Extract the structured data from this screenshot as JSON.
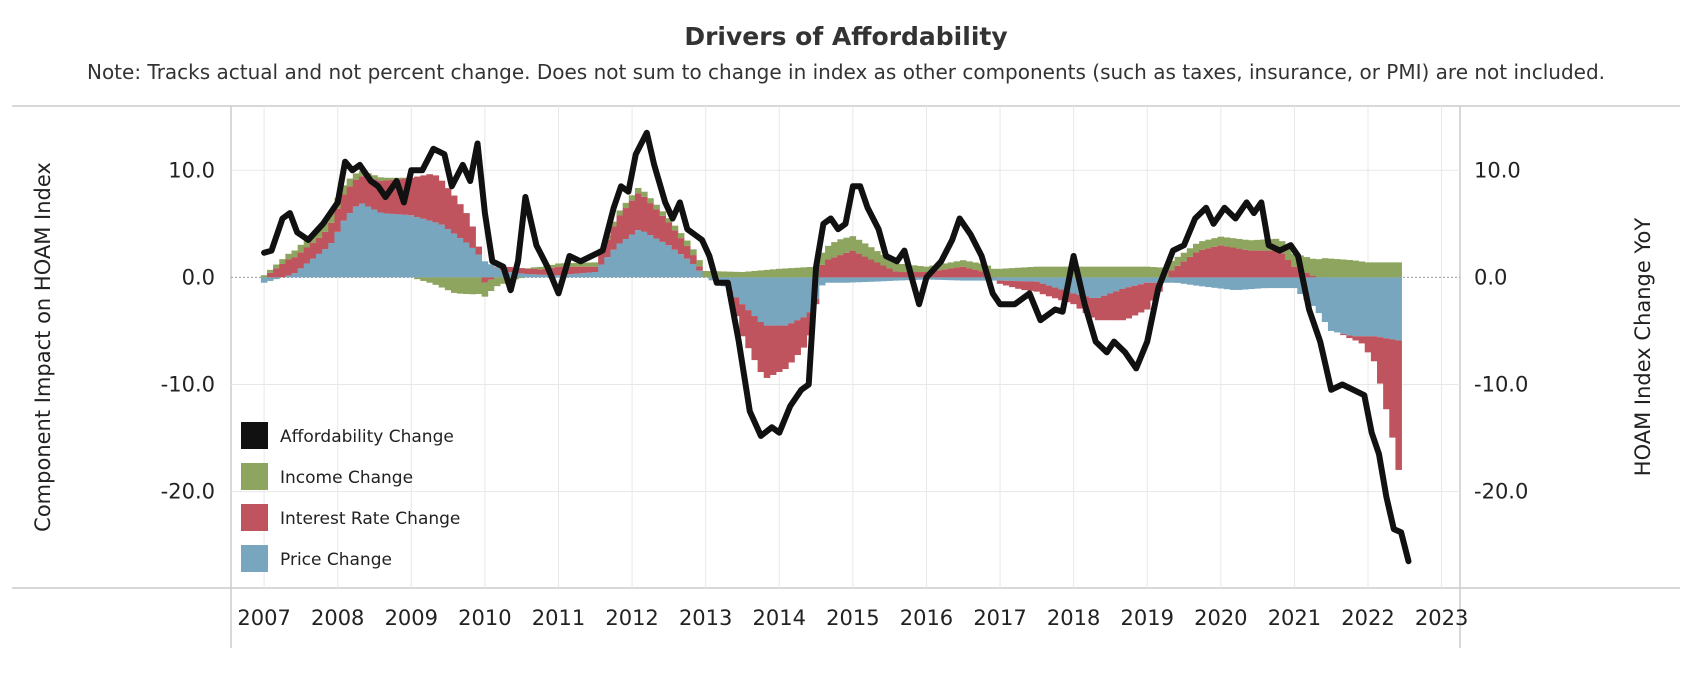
{
  "chart_data": {
    "type": "bar",
    "title": "Drivers of Affordability",
    "subtitle": "Note: Tracks actual and not percent change. Does not sum to change in index as other components (such as taxes, insurance, or PMI) are not included.",
    "y_left_label": "Component Impact on HOAM Index",
    "y_right_label": "HOAM Index Change YoY",
    "ylim": [
      -27,
      15
    ],
    "yticks": [
      10,
      0,
      -10,
      -20
    ],
    "ytick_labels": [
      "10.0",
      "0.0",
      "-10.0",
      "-20.0"
    ],
    "xlim": [
      2007.0,
      2023.3
    ],
    "xticks": [
      2007,
      2008,
      2009,
      2010,
      2011,
      2012,
      2013,
      2014,
      2015,
      2016,
      2017,
      2018,
      2019,
      2020,
      2021,
      2022,
      2023
    ],
    "xtick_labels": [
      "2007",
      "2008",
      "2009",
      "2010",
      "2011",
      "2012",
      "2013",
      "2014",
      "2015",
      "2016",
      "2017",
      "2018",
      "2019",
      "2020",
      "2021",
      "2022",
      "2023"
    ],
    "grid": true,
    "legend_position": "bottom-left",
    "colors": {
      "affordability": "#111111",
      "income": "#8da55e",
      "interest": "#c0545e",
      "price": "#79a6bf",
      "grid": "#e8e8e8",
      "zero_line": "#aaaaaa",
      "frame": "#cccccc"
    },
    "legend": [
      {
        "key": "affordability",
        "label": "Affordability Change"
      },
      {
        "key": "income",
        "label": "Income Change"
      },
      {
        "key": "interest",
        "label": "Interest Rate Change"
      },
      {
        "key": "price",
        "label": "Price Change"
      }
    ],
    "monthly_start": "2007-01",
    "monthly_end": "2022-06",
    "price_keypoints": [
      [
        2007.0,
        -0.5
      ],
      [
        2007.4,
        0.3
      ],
      [
        2007.9,
        3.0
      ],
      [
        2008.1,
        5.5
      ],
      [
        2008.3,
        7.0
      ],
      [
        2008.6,
        6.0
      ],
      [
        2009.0,
        5.8
      ],
      [
        2009.4,
        5.0
      ],
      [
        2009.8,
        3.0
      ],
      [
        2010.0,
        1.5
      ],
      [
        2010.3,
        0.5
      ],
      [
        2010.6,
        0.3
      ],
      [
        2011.0,
        0.2
      ],
      [
        2011.5,
        0.5
      ],
      [
        2011.8,
        3.0
      ],
      [
        2012.1,
        4.5
      ],
      [
        2012.5,
        3.0
      ],
      [
        2012.8,
        1.5
      ],
      [
        2013.0,
        0.0
      ],
      [
        2013.3,
        -1.0
      ],
      [
        2013.5,
        -2.5
      ],
      [
        2013.8,
        -4.5
      ],
      [
        2014.1,
        -4.5
      ],
      [
        2014.4,
        -3.5
      ],
      [
        2014.6,
        -0.5
      ],
      [
        2014.9,
        -0.5
      ],
      [
        2015.3,
        -0.4
      ],
      [
        2015.6,
        -0.3
      ],
      [
        2016.0,
        -0.2
      ],
      [
        2016.5,
        -0.3
      ],
      [
        2017.0,
        -0.3
      ],
      [
        2017.5,
        -0.4
      ],
      [
        2018.0,
        -1.5
      ],
      [
        2018.3,
        -2.0
      ],
      [
        2018.7,
        -1.0
      ],
      [
        2019.0,
        -0.5
      ],
      [
        2019.4,
        -0.5
      ],
      [
        2019.7,
        -0.8
      ],
      [
        2020.2,
        -1.2
      ],
      [
        2020.6,
        -1.0
      ],
      [
        2021.0,
        -1.0
      ],
      [
        2021.3,
        -3.0
      ],
      [
        2021.5,
        -5.0
      ],
      [
        2021.8,
        -5.5
      ],
      [
        2022.1,
        -5.5
      ],
      [
        2022.5,
        -6.0
      ]
    ],
    "interest_keypoints": [
      [
        2007.0,
        0.0
      ],
      [
        2007.3,
        1.5
      ],
      [
        2007.8,
        1.5
      ],
      [
        2008.1,
        2.5
      ],
      [
        2008.3,
        2.5
      ],
      [
        2008.6,
        3.0
      ],
      [
        2009.0,
        3.5
      ],
      [
        2009.3,
        4.5
      ],
      [
        2009.6,
        3.5
      ],
      [
        2009.8,
        2.5
      ],
      [
        2010.0,
        -0.5
      ],
      [
        2010.3,
        0.5
      ],
      [
        2010.5,
        0.5
      ],
      [
        2010.8,
        0.5
      ],
      [
        2011.0,
        0.8
      ],
      [
        2011.5,
        0.5
      ],
      [
        2011.8,
        2.5
      ],
      [
        2012.1,
        3.5
      ],
      [
        2012.4,
        2.5
      ],
      [
        2012.8,
        1.0
      ],
      [
        2013.0,
        0.0
      ],
      [
        2013.3,
        0.0
      ],
      [
        2013.5,
        -3.0
      ],
      [
        2013.8,
        -5.0
      ],
      [
        2014.1,
        -4.0
      ],
      [
        2014.4,
        -2.5
      ],
      [
        2014.6,
        1.5
      ],
      [
        2015.0,
        2.5
      ],
      [
        2015.3,
        1.5
      ],
      [
        2015.6,
        0.5
      ],
      [
        2016.0,
        0.5
      ],
      [
        2016.5,
        1.0
      ],
      [
        2016.8,
        0.5
      ],
      [
        2017.0,
        -0.3
      ],
      [
        2017.3,
        -0.8
      ],
      [
        2017.6,
        -1.0
      ],
      [
        2018.0,
        -1.0
      ],
      [
        2018.3,
        -2.0
      ],
      [
        2018.7,
        -3.0
      ],
      [
        2019.0,
        -2.5
      ],
      [
        2019.3,
        0.5
      ],
      [
        2019.7,
        2.5
      ],
      [
        2020.0,
        3.0
      ],
      [
        2020.4,
        2.5
      ],
      [
        2020.8,
        2.5
      ],
      [
        2021.0,
        1.0
      ],
      [
        2021.3,
        0.0
      ],
      [
        2021.6,
        0.0
      ],
      [
        2021.9,
        -0.5
      ],
      [
        2022.1,
        -2.5
      ],
      [
        2022.3,
        -8.0
      ],
      [
        2022.5,
        -15.0
      ]
    ],
    "income_keypoints": [
      [
        2007.0,
        0.2
      ],
      [
        2007.3,
        0.5
      ],
      [
        2007.6,
        0.8
      ],
      [
        2008.0,
        1.0
      ],
      [
        2008.3,
        0.5
      ],
      [
        2008.6,
        0.3
      ],
      [
        2009.0,
        0.0
      ],
      [
        2009.3,
        -0.6
      ],
      [
        2009.6,
        -1.5
      ],
      [
        2009.9,
        -1.6
      ],
      [
        2010.1,
        -1.0
      ],
      [
        2010.4,
        -0.2
      ],
      [
        2010.7,
        0.2
      ],
      [
        2011.0,
        0.3
      ],
      [
        2011.5,
        0.4
      ],
      [
        2012.0,
        0.5
      ],
      [
        2012.5,
        0.4
      ],
      [
        2013.0,
        0.6
      ],
      [
        2013.5,
        0.5
      ],
      [
        2014.0,
        0.8
      ],
      [
        2014.5,
        1.0
      ],
      [
        2014.8,
        1.5
      ],
      [
        2015.2,
        1.2
      ],
      [
        2015.6,
        0.8
      ],
      [
        2016.0,
        0.5
      ],
      [
        2016.5,
        0.6
      ],
      [
        2017.0,
        0.8
      ],
      [
        2017.5,
        1.0
      ],
      [
        2018.0,
        1.0
      ],
      [
        2018.5,
        1.0
      ],
      [
        2019.0,
        1.0
      ],
      [
        2019.5,
        0.8
      ],
      [
        2020.0,
        0.8
      ],
      [
        2020.5,
        1.0
      ],
      [
        2021.0,
        1.2
      ],
      [
        2021.4,
        1.8
      ],
      [
        2021.8,
        1.6
      ],
      [
        2022.0,
        1.4
      ],
      [
        2022.5,
        1.4
      ]
    ],
    "affordability_keypoints": [
      [
        2007.0,
        2.3
      ],
      [
        2007.1,
        2.5
      ],
      [
        2007.25,
        5.5
      ],
      [
        2007.35,
        6.0
      ],
      [
        2007.45,
        4.2
      ],
      [
        2007.6,
        3.5
      ],
      [
        2007.8,
        5.0
      ],
      [
        2008.0,
        7.0
      ],
      [
        2008.1,
        10.8
      ],
      [
        2008.2,
        10.0
      ],
      [
        2008.3,
        10.5
      ],
      [
        2008.45,
        9.0
      ],
      [
        2008.55,
        8.5
      ],
      [
        2008.65,
        7.5
      ],
      [
        2008.8,
        9.0
      ],
      [
        2008.9,
        7.0
      ],
      [
        2009.0,
        10.0
      ],
      [
        2009.15,
        10.0
      ],
      [
        2009.3,
        12.0
      ],
      [
        2009.45,
        11.5
      ],
      [
        2009.55,
        8.5
      ],
      [
        2009.7,
        10.5
      ],
      [
        2009.8,
        9.0
      ],
      [
        2009.9,
        12.5
      ],
      [
        2010.0,
        6.0
      ],
      [
        2010.1,
        1.5
      ],
      [
        2010.25,
        1.0
      ],
      [
        2010.35,
        -1.2
      ],
      [
        2010.45,
        1.5
      ],
      [
        2010.55,
        7.5
      ],
      [
        2010.7,
        3.0
      ],
      [
        2010.85,
        1.0
      ],
      [
        2011.0,
        -1.5
      ],
      [
        2011.15,
        2.0
      ],
      [
        2011.3,
        1.5
      ],
      [
        2011.45,
        2.0
      ],
      [
        2011.6,
        2.5
      ],
      [
        2011.75,
        6.5
      ],
      [
        2011.85,
        8.5
      ],
      [
        2011.95,
        8.0
      ],
      [
        2012.05,
        11.5
      ],
      [
        2012.2,
        13.5
      ],
      [
        2012.3,
        10.5
      ],
      [
        2012.45,
        7.0
      ],
      [
        2012.55,
        5.5
      ],
      [
        2012.65,
        7.0
      ],
      [
        2012.75,
        4.5
      ],
      [
        2012.85,
        4.0
      ],
      [
        2012.95,
        3.5
      ],
      [
        2013.05,
        2.0
      ],
      [
        2013.15,
        -0.5
      ],
      [
        2013.3,
        -0.5
      ],
      [
        2013.45,
        -6.0
      ],
      [
        2013.6,
        -12.5
      ],
      [
        2013.75,
        -14.8
      ],
      [
        2013.9,
        -14.0
      ],
      [
        2014.0,
        -14.5
      ],
      [
        2014.15,
        -12.0
      ],
      [
        2014.3,
        -10.5
      ],
      [
        2014.4,
        -10.0
      ],
      [
        2014.5,
        1.0
      ],
      [
        2014.6,
        5.0
      ],
      [
        2014.7,
        5.5
      ],
      [
        2014.8,
        4.5
      ],
      [
        2014.9,
        5.0
      ],
      [
        2015.0,
        8.5
      ],
      [
        2015.1,
        8.5
      ],
      [
        2015.2,
        6.5
      ],
      [
        2015.35,
        4.5
      ],
      [
        2015.45,
        2.0
      ],
      [
        2015.6,
        1.5
      ],
      [
        2015.7,
        2.5
      ],
      [
        2015.8,
        0.0
      ],
      [
        2015.9,
        -2.5
      ],
      [
        2016.0,
        0.0
      ],
      [
        2016.2,
        1.5
      ],
      [
        2016.35,
        3.5
      ],
      [
        2016.45,
        5.5
      ],
      [
        2016.6,
        4.0
      ],
      [
        2016.75,
        2.0
      ],
      [
        2016.9,
        -1.5
      ],
      [
        2017.0,
        -2.5
      ],
      [
        2017.2,
        -2.5
      ],
      [
        2017.4,
        -1.5
      ],
      [
        2017.55,
        -4.0
      ],
      [
        2017.75,
        -3.0
      ],
      [
        2017.85,
        -3.2
      ],
      [
        2018.0,
        2.0
      ],
      [
        2018.15,
        -2.5
      ],
      [
        2018.3,
        -6.0
      ],
      [
        2018.45,
        -7.0
      ],
      [
        2018.55,
        -6.0
      ],
      [
        2018.7,
        -7.0
      ],
      [
        2018.85,
        -8.5
      ],
      [
        2019.0,
        -6.0
      ],
      [
        2019.15,
        -1.0
      ],
      [
        2019.35,
        2.5
      ],
      [
        2019.5,
        3.0
      ],
      [
        2019.65,
        5.5
      ],
      [
        2019.8,
        6.5
      ],
      [
        2019.9,
        5.0
      ],
      [
        2020.05,
        6.5
      ],
      [
        2020.2,
        5.5
      ],
      [
        2020.35,
        7.0
      ],
      [
        2020.45,
        6.0
      ],
      [
        2020.55,
        7.0
      ],
      [
        2020.65,
        3.0
      ],
      [
        2020.8,
        2.5
      ],
      [
        2020.95,
        3.0
      ],
      [
        2021.05,
        2.0
      ],
      [
        2021.2,
        -3.0
      ],
      [
        2021.35,
        -6.0
      ],
      [
        2021.5,
        -10.5
      ],
      [
        2021.65,
        -10.0
      ],
      [
        2021.8,
        -10.5
      ],
      [
        2021.95,
        -11.0
      ],
      [
        2022.05,
        -14.5
      ],
      [
        2022.15,
        -16.5
      ],
      [
        2022.25,
        -20.5
      ],
      [
        2022.35,
        -23.5
      ],
      [
        2022.45,
        -23.8
      ],
      [
        2022.55,
        -26.5
      ]
    ]
  }
}
